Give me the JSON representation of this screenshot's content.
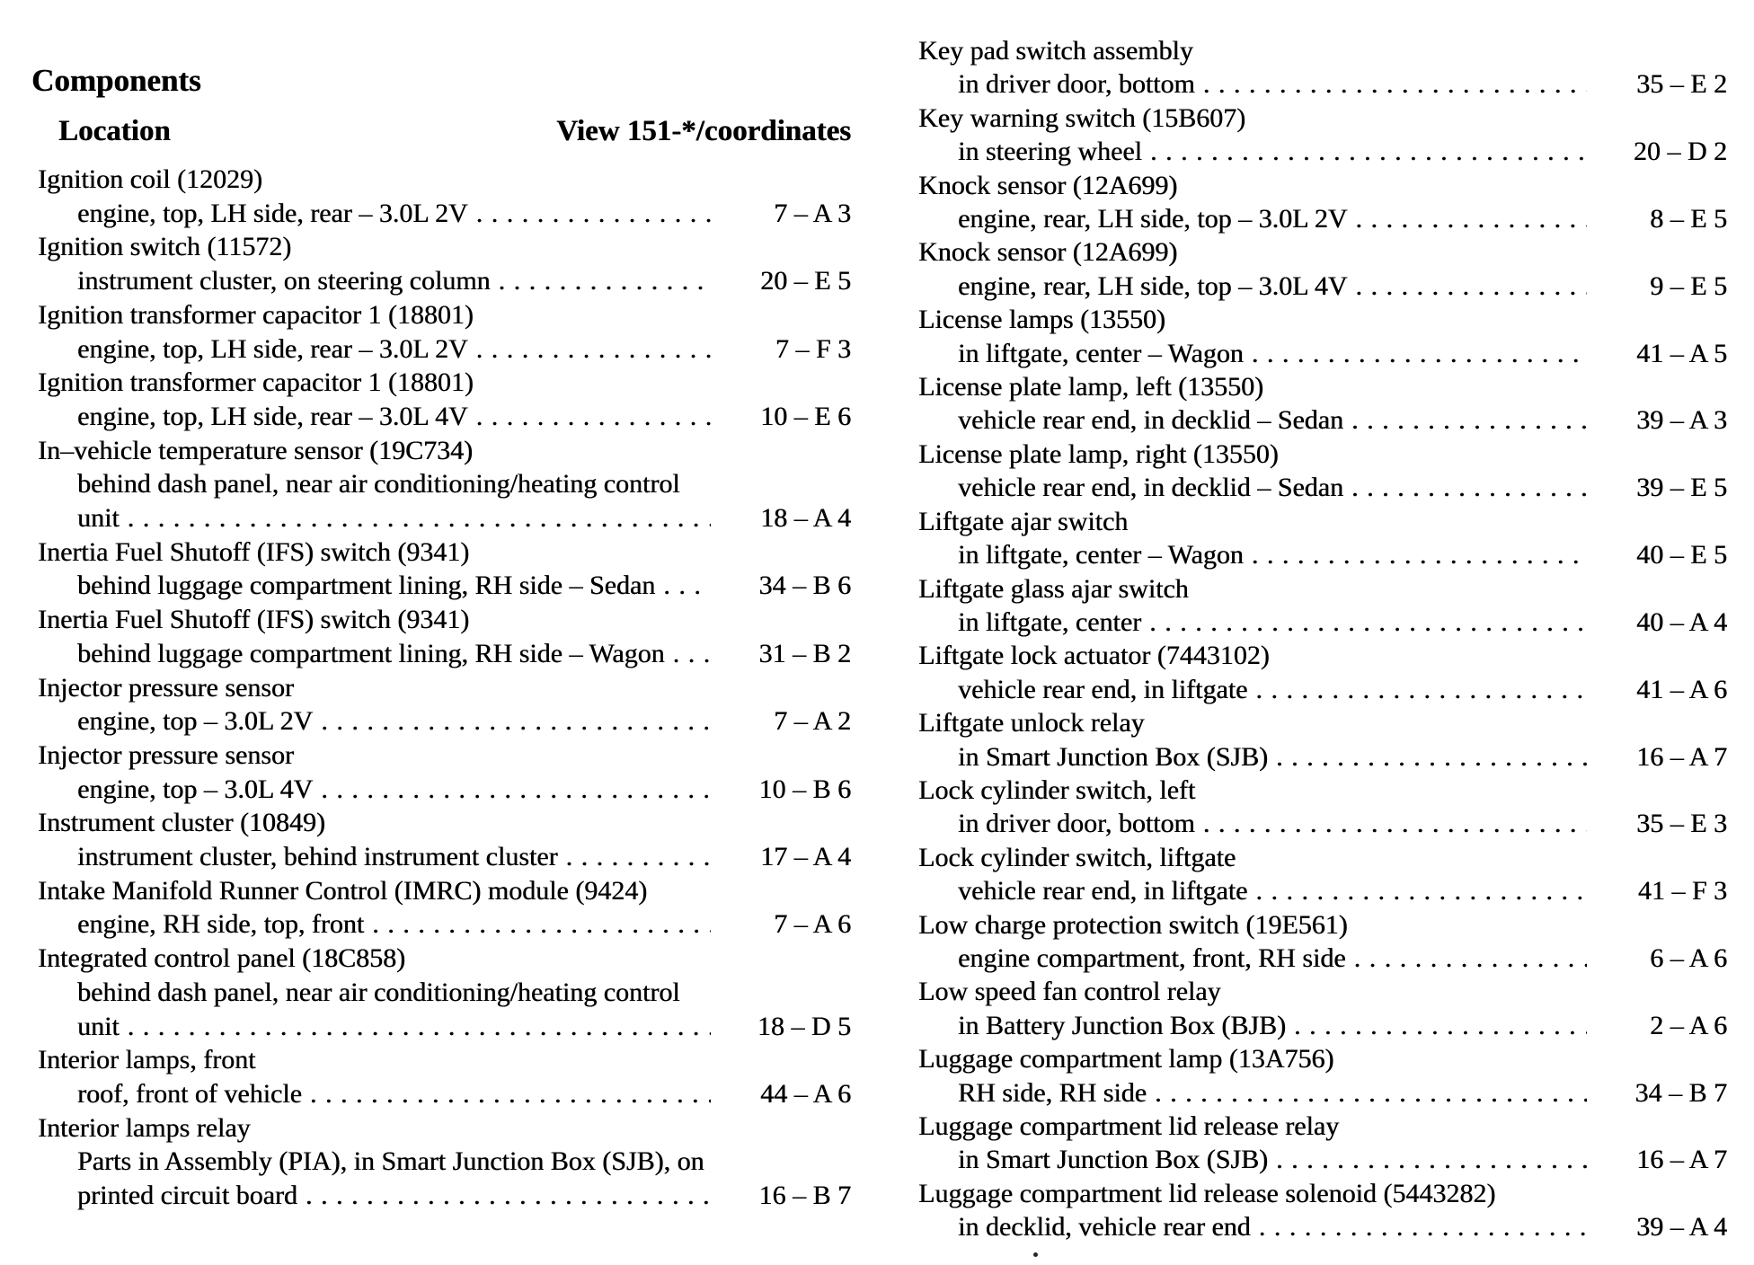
{
  "header": {
    "title": "Components",
    "location_label": "Location",
    "view_label": "View 151-*/coordinates"
  },
  "columns": {
    "left": [
      {
        "name": "Ignition coil (12029)",
        "location_lines": [
          "engine, top, LH side, rear – 3.0L 2V"
        ],
        "coord": "7 – A 3"
      },
      {
        "name": "Ignition switch (11572)",
        "location_lines": [
          "instrument cluster, on steering column"
        ],
        "coord": "20 – E 5"
      },
      {
        "name": "Ignition transformer capacitor 1 (18801)",
        "location_lines": [
          "engine, top, LH side, rear – 3.0L 2V"
        ],
        "coord": "7 – F 3"
      },
      {
        "name": "Ignition transformer capacitor 1 (18801)",
        "location_lines": [
          "engine, top, LH side, rear – 3.0L 4V"
        ],
        "coord": "10 – E 6"
      },
      {
        "name": "In–vehicle temperature sensor (19C734)",
        "location_lines": [
          "behind dash panel, near air conditioning/heating control",
          "unit"
        ],
        "coord": "18 – A 4"
      },
      {
        "name": "Inertia Fuel Shutoff (IFS) switch (9341)",
        "location_lines": [
          "behind luggage compartment lining, RH side – Sedan"
        ],
        "coord": "34 – B 6"
      },
      {
        "name": "Inertia Fuel Shutoff (IFS) switch (9341)",
        "location_lines": [
          "behind luggage compartment lining, RH side – Wagon"
        ],
        "coord": "31 – B 2"
      },
      {
        "name": "Injector pressure sensor",
        "location_lines": [
          "engine, top – 3.0L 2V"
        ],
        "coord": "7 – A 2"
      },
      {
        "name": "Injector pressure sensor",
        "location_lines": [
          "engine, top – 3.0L 4V"
        ],
        "coord": "10 – B 6"
      },
      {
        "name": "Instrument cluster (10849)",
        "location_lines": [
          "instrument cluster, behind instrument cluster"
        ],
        "coord": "17 – A 4"
      },
      {
        "name": "Intake Manifold Runner Control (IMRC) module (9424)",
        "location_lines": [
          "engine, RH side, top, front"
        ],
        "coord": "7 – A 6"
      },
      {
        "name": "Integrated control panel (18C858)",
        "location_lines": [
          "behind dash panel, near air conditioning/heating control",
          "unit"
        ],
        "coord": "18 – D 5"
      },
      {
        "name": "Interior lamps, front",
        "location_lines": [
          "roof, front of vehicle"
        ],
        "coord": "44 – A 6"
      },
      {
        "name": "Interior lamps relay",
        "location_lines": [
          "Parts in Assembly (PIA), in Smart Junction Box (SJB), on",
          "printed circuit board"
        ],
        "coord": "16 – B 7"
      }
    ],
    "right": [
      {
        "name": "Key pad switch assembly",
        "location_lines": [
          "in driver door, bottom"
        ],
        "coord": "35 – E 2"
      },
      {
        "name": "Key warning switch (15B607)",
        "location_lines": [
          "in steering wheel"
        ],
        "coord": "20 – D 2"
      },
      {
        "name": "Knock sensor (12A699)",
        "location_lines": [
          "engine, rear, LH side, top – 3.0L 2V"
        ],
        "coord": "8 – E 5"
      },
      {
        "name": "Knock sensor (12A699)",
        "location_lines": [
          "engine, rear, LH side, top – 3.0L 4V"
        ],
        "coord": "9 – E 5"
      },
      {
        "name": "License lamps (13550)",
        "location_lines": [
          "in liftgate, center – Wagon"
        ],
        "coord": "41 – A 5"
      },
      {
        "name": "License plate lamp, left (13550)",
        "location_lines": [
          "vehicle rear end, in decklid – Sedan"
        ],
        "coord": "39 – A 3"
      },
      {
        "name": "License plate lamp, right (13550)",
        "location_lines": [
          "vehicle rear end, in decklid – Sedan"
        ],
        "coord": "39 – E 5"
      },
      {
        "name": "Liftgate ajar switch",
        "location_lines": [
          "in liftgate, center – Wagon"
        ],
        "coord": "40 – E 5"
      },
      {
        "name": "Liftgate glass ajar switch",
        "location_lines": [
          "in liftgate, center"
        ],
        "coord": "40 – A 4"
      },
      {
        "name": "Liftgate lock actuator (7443102)",
        "location_lines": [
          "vehicle rear end, in liftgate"
        ],
        "coord": "41 – A 6"
      },
      {
        "name": "Liftgate unlock relay",
        "location_lines": [
          "in Smart Junction Box (SJB)"
        ],
        "coord": "16 – A 7"
      },
      {
        "name": "Lock cylinder switch, left",
        "location_lines": [
          "in driver door, bottom"
        ],
        "coord": "35 – E 3"
      },
      {
        "name": "Lock cylinder switch, liftgate",
        "location_lines": [
          "vehicle rear end, in liftgate"
        ],
        "coord": "41 – F 3"
      },
      {
        "name": "Low charge protection switch (19E561)",
        "location_lines": [
          "engine compartment, front, RH side"
        ],
        "coord": "6 – A 6"
      },
      {
        "name": "Low speed fan control relay",
        "location_lines": [
          "in Battery Junction Box (BJB)"
        ],
        "coord": "2 – A 6"
      },
      {
        "name": "Luggage compartment lamp (13A756)",
        "location_lines": [
          "RH side, RH side"
        ],
        "coord": "34 – B 7"
      },
      {
        "name": "Luggage compartment lid release relay",
        "location_lines": [
          "in Smart Junction Box (SJB)"
        ],
        "coord": "16 – A 7"
      },
      {
        "name": "Luggage compartment lid release solenoid (5443282)",
        "location_lines": [
          "in decklid, vehicle rear end"
        ],
        "coord": "39 – A 4"
      }
    ]
  }
}
